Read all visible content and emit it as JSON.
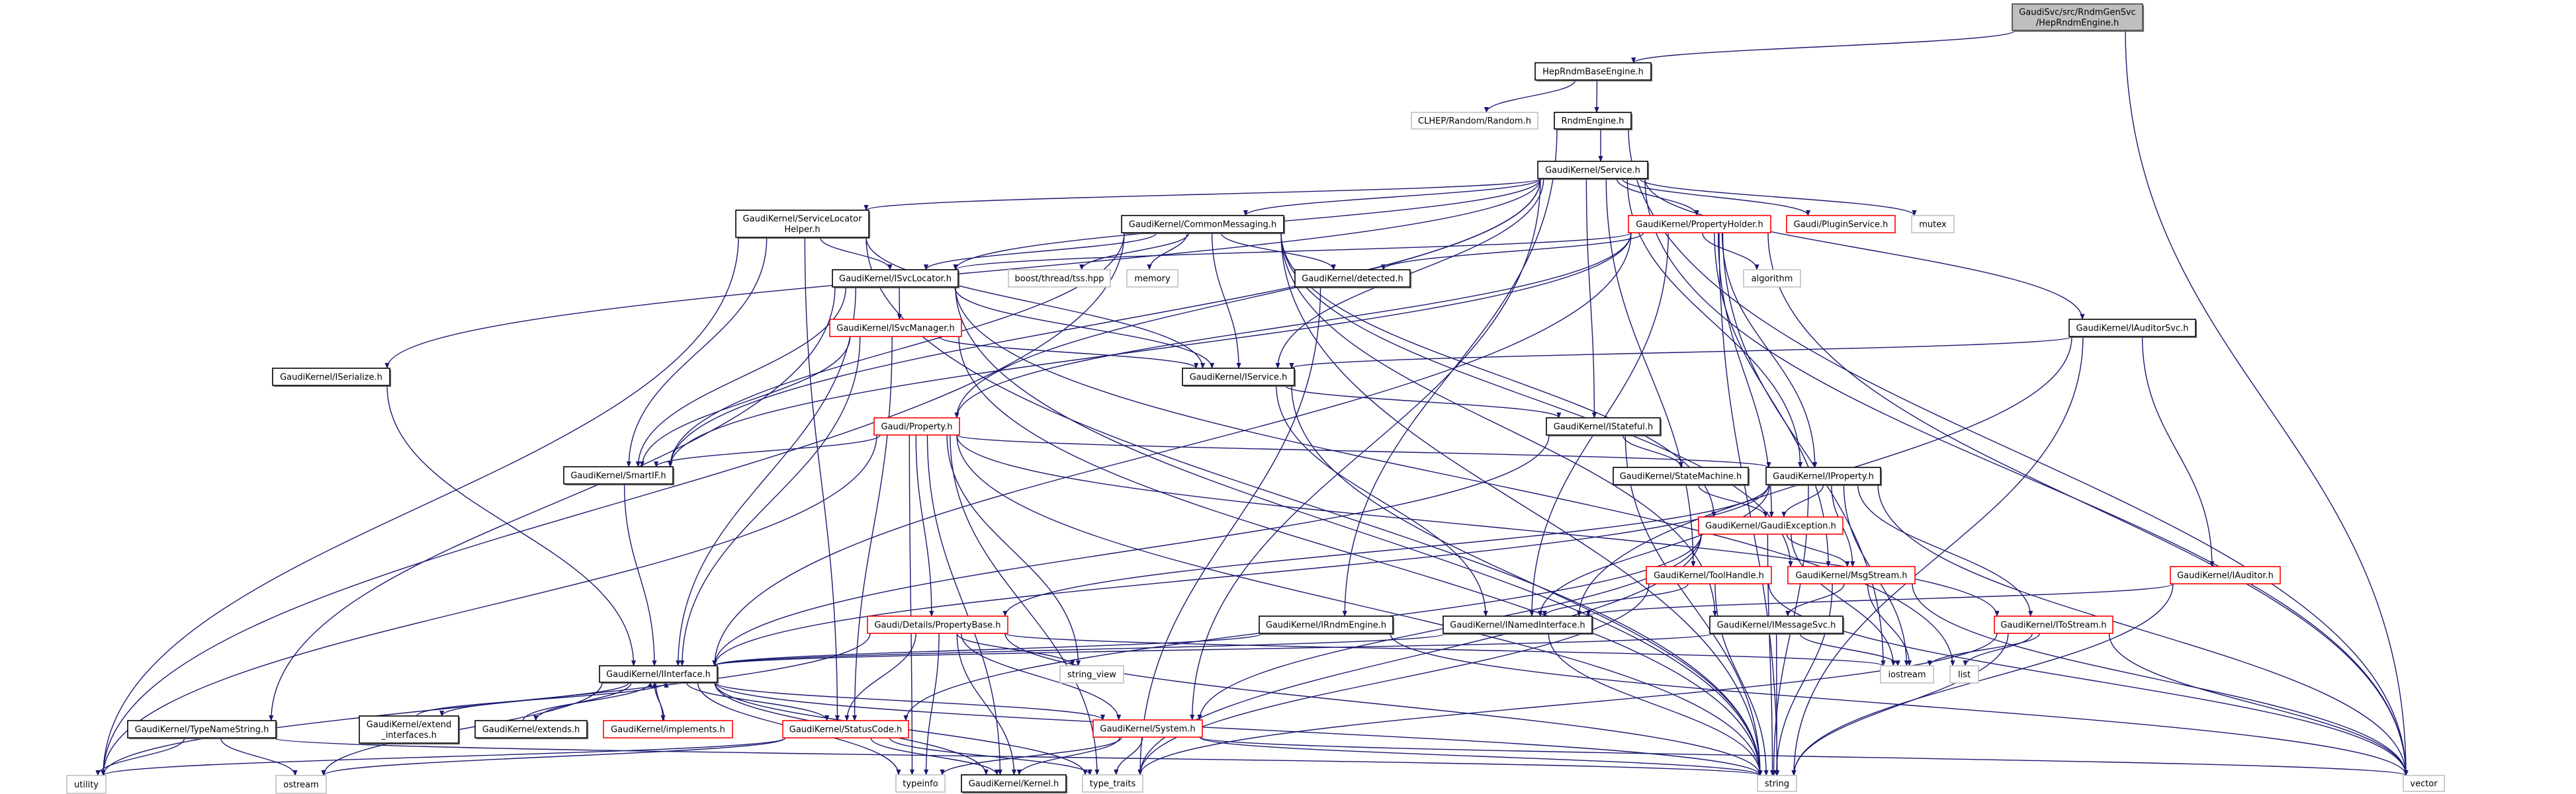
{
  "colors": {
    "edge": "#191970",
    "normal_border": "#000000",
    "root_fill": "#bfbfbf",
    "truncated_border": "#ff0000",
    "external_border": "#bfbfbf"
  },
  "nodes": {
    "root": {
      "lines": [
        "GaudiSvc/src/RndmGenSvc",
        "/HepRndmEngine.h"
      ],
      "kind": "root"
    },
    "hepbase": {
      "lines": [
        "HepRndmBaseEngine.h"
      ],
      "kind": "normal"
    },
    "clhep": {
      "lines": [
        "CLHEP/Random/Random.h"
      ],
      "kind": "external"
    },
    "rndmengine": {
      "lines": [
        "RndmEngine.h"
      ],
      "kind": "normal"
    },
    "service": {
      "lines": [
        "GaudiKernel/Service.h"
      ],
      "kind": "normal"
    },
    "slhelper": {
      "lines": [
        "GaudiKernel/ServiceLocator",
        "Helper.h"
      ],
      "kind": "normal"
    },
    "commonmsg": {
      "lines": [
        "GaudiKernel/CommonMessaging.h"
      ],
      "kind": "normal"
    },
    "propholder": {
      "lines": [
        "GaudiKernel/PropertyHolder.h"
      ],
      "kind": "truncated"
    },
    "pluginsvc": {
      "lines": [
        "Gaudi/PluginService.h"
      ],
      "kind": "truncated"
    },
    "mutex": {
      "lines": [
        "mutex"
      ],
      "kind": "external"
    },
    "isvclocator": {
      "lines": [
        "GaudiKernel/ISvcLocator.h"
      ],
      "kind": "normal"
    },
    "boosttss": {
      "lines": [
        "boost/thread/tss.hpp"
      ],
      "kind": "external"
    },
    "memory": {
      "lines": [
        "memory"
      ],
      "kind": "external"
    },
    "detected": {
      "lines": [
        "GaudiKernel/detected.h"
      ],
      "kind": "normal"
    },
    "algorithm": {
      "lines": [
        "algorithm"
      ],
      "kind": "external"
    },
    "iserialize": {
      "lines": [
        "GaudiKernel/ISerialize.h"
      ],
      "kind": "normal"
    },
    "isvcmanager": {
      "lines": [
        "GaudiKernel/ISvcManager.h"
      ],
      "kind": "truncated"
    },
    "iauditorsvc": {
      "lines": [
        "GaudiKernel/IAuditorSvc.h"
      ],
      "kind": "normal"
    },
    "iservice": {
      "lines": [
        "GaudiKernel/IService.h"
      ],
      "kind": "normal"
    },
    "property": {
      "lines": [
        "Gaudi/Property.h"
      ],
      "kind": "truncated"
    },
    "istateful": {
      "lines": [
        "GaudiKernel/IStateful.h"
      ],
      "kind": "normal"
    },
    "smartif": {
      "lines": [
        "GaudiKernel/SmartIF.h"
      ],
      "kind": "normal"
    },
    "statemachine": {
      "lines": [
        "GaudiKernel/StateMachine.h"
      ],
      "kind": "normal"
    },
    "iproperty": {
      "lines": [
        "GaudiKernel/IProperty.h"
      ],
      "kind": "normal"
    },
    "gaudiexception": {
      "lines": [
        "GaudiKernel/GaudiException.h"
      ],
      "kind": "truncated"
    },
    "toolhandle": {
      "lines": [
        "GaudiKernel/ToolHandle.h"
      ],
      "kind": "truncated"
    },
    "msgstream": {
      "lines": [
        "GaudiKernel/MsgStream.h"
      ],
      "kind": "truncated"
    },
    "iauditor": {
      "lines": [
        "GaudiKernel/IAuditor.h"
      ],
      "kind": "truncated"
    },
    "propertybase": {
      "lines": [
        "Gaudi/Details/PropertyBase.h"
      ],
      "kind": "truncated"
    },
    "irndmengine": {
      "lines": [
        "GaudiKernel/IRndmEngine.h"
      ],
      "kind": "normal"
    },
    "inamedinterface": {
      "lines": [
        "GaudiKernel/INamedInterface.h"
      ],
      "kind": "normal"
    },
    "imessagesvc": {
      "lines": [
        "GaudiKernel/IMessageSvc.h"
      ],
      "kind": "normal"
    },
    "itostream": {
      "lines": [
        "GaudiKernel/IToStream.h"
      ],
      "kind": "truncated"
    },
    "iostream": {
      "lines": [
        "iostream"
      ],
      "kind": "external"
    },
    "list": {
      "lines": [
        "list"
      ],
      "kind": "external"
    },
    "string_view": {
      "lines": [
        "string_view"
      ],
      "kind": "external"
    },
    "iinterface": {
      "lines": [
        "GaudiKernel/IInterface.h"
      ],
      "kind": "normal"
    },
    "typenamestring": {
      "lines": [
        "GaudiKernel/TypeNameString.h"
      ],
      "kind": "normal"
    },
    "extend_interfaces": {
      "lines": [
        "GaudiKernel/extend",
        "_interfaces.h"
      ],
      "kind": "normal"
    },
    "extends": {
      "lines": [
        "GaudiKernel/extends.h"
      ],
      "kind": "normal"
    },
    "implements": {
      "lines": [
        "GaudiKernel/implements.h"
      ],
      "kind": "truncated"
    },
    "statuscode": {
      "lines": [
        "GaudiKernel/StatusCode.h"
      ],
      "kind": "truncated"
    },
    "system": {
      "lines": [
        "GaudiKernel/System.h"
      ],
      "kind": "truncated"
    },
    "utility": {
      "lines": [
        "utility"
      ],
      "kind": "external"
    },
    "ostream": {
      "lines": [
        "ostream"
      ],
      "kind": "external"
    },
    "typeinfo": {
      "lines": [
        "typeinfo"
      ],
      "kind": "external"
    },
    "kernel": {
      "lines": [
        "GaudiKernel/Kernel.h"
      ],
      "kind": "normal"
    },
    "type_traits": {
      "lines": [
        "type_traits"
      ],
      "kind": "external"
    },
    "string": {
      "lines": [
        "string"
      ],
      "kind": "external"
    },
    "vector": {
      "lines": [
        "vector"
      ],
      "kind": "external"
    }
  },
  "edges": [
    [
      "root",
      "hepbase"
    ],
    [
      "root",
      "vector"
    ],
    [
      "hepbase",
      "clhep"
    ],
    [
      "hepbase",
      "rndmengine"
    ],
    [
      "rndmengine",
      "service"
    ],
    [
      "rndmengine",
      "irndmengine"
    ],
    [
      "rndmengine",
      "vector"
    ],
    [
      "service",
      "slhelper"
    ],
    [
      "service",
      "commonmsg"
    ],
    [
      "service",
      "propholder"
    ],
    [
      "service",
      "pluginsvc"
    ],
    [
      "service",
      "mutex"
    ],
    [
      "service",
      "isvclocator"
    ],
    [
      "service",
      "iservice"
    ],
    [
      "service",
      "property"
    ],
    [
      "service",
      "istateful"
    ],
    [
      "service",
      "smartif"
    ],
    [
      "service",
      "iproperty"
    ],
    [
      "service",
      "iauditorsvc"
    ],
    [
      "service",
      "iserialize"
    ],
    [
      "service",
      "vector"
    ],
    [
      "service",
      "toolhandle"
    ],
    [
      "service",
      "system"
    ],
    [
      "slhelper",
      "isvclocator"
    ],
    [
      "slhelper",
      "iservice"
    ],
    [
      "slhelper",
      "smartif"
    ],
    [
      "slhelper",
      "statuscode"
    ],
    [
      "slhelper",
      "string"
    ],
    [
      "slhelper",
      "utility"
    ],
    [
      "commonmsg",
      "boosttss"
    ],
    [
      "commonmsg",
      "memory"
    ],
    [
      "commonmsg",
      "detected"
    ],
    [
      "commonmsg",
      "isvclocator"
    ],
    [
      "commonmsg",
      "iservice"
    ],
    [
      "commonmsg",
      "smartif"
    ],
    [
      "commonmsg",
      "msgstream"
    ],
    [
      "commonmsg",
      "imessagesvc"
    ],
    [
      "commonmsg",
      "gaudiexception"
    ],
    [
      "commonmsg",
      "utility"
    ],
    [
      "commonmsg",
      "string"
    ],
    [
      "propholder",
      "algorithm"
    ],
    [
      "propholder",
      "detected"
    ],
    [
      "propholder",
      "isvclocator"
    ],
    [
      "propholder",
      "iproperty"
    ],
    [
      "propholder",
      "gaudiexception"
    ],
    [
      "propholder",
      "msgstream"
    ],
    [
      "propholder",
      "inamedinterface"
    ],
    [
      "propholder",
      "property"
    ],
    [
      "propholder",
      "vector"
    ],
    [
      "propholder",
      "string"
    ],
    [
      "propholder",
      "iostream"
    ],
    [
      "propholder",
      "iinterface"
    ],
    [
      "propholder",
      "smartif"
    ],
    [
      "isvclocator",
      "isvcmanager"
    ],
    [
      "isvclocator",
      "iservice"
    ],
    [
      "isvclocator",
      "smartif"
    ],
    [
      "isvclocator",
      "iinterface"
    ],
    [
      "isvclocator",
      "typenamestring"
    ],
    [
      "isvclocator",
      "string"
    ],
    [
      "isvclocator",
      "list"
    ],
    [
      "isvcmanager",
      "iservice"
    ],
    [
      "isvcmanager",
      "smartif"
    ],
    [
      "isvcmanager",
      "iinterface"
    ],
    [
      "isvcmanager",
      "statuscode"
    ],
    [
      "isvcmanager",
      "string"
    ],
    [
      "iauditorsvc",
      "iservice"
    ],
    [
      "iauditorsvc",
      "iauditor"
    ],
    [
      "iauditorsvc",
      "inamedinterface"
    ],
    [
      "iauditorsvc",
      "string"
    ],
    [
      "iserialize",
      "iinterface"
    ],
    [
      "iservice",
      "istateful"
    ],
    [
      "iservice",
      "inamedinterface"
    ],
    [
      "iservice",
      "string"
    ],
    [
      "detected",
      "type_traits"
    ],
    [
      "property",
      "smartif"
    ],
    [
      "property",
      "iproperty"
    ],
    [
      "property",
      "propertybase"
    ],
    [
      "property",
      "itostream"
    ],
    [
      "property",
      "string_view"
    ],
    [
      "property",
      "utility"
    ],
    [
      "property",
      "typeinfo"
    ],
    [
      "property",
      "kernel"
    ],
    [
      "property",
      "string"
    ],
    [
      "property",
      "type_traits"
    ],
    [
      "istateful",
      "statemachine"
    ],
    [
      "istateful",
      "iinterface"
    ],
    [
      "istateful",
      "string"
    ],
    [
      "smartif",
      "iinterface"
    ],
    [
      "statemachine",
      "gaudiexception"
    ],
    [
      "iproperty",
      "gaudiexception"
    ],
    [
      "iproperty",
      "inamedinterface"
    ],
    [
      "iproperty",
      "iinterface"
    ],
    [
      "iproperty",
      "itostream"
    ],
    [
      "iproperty",
      "msgstream"
    ],
    [
      "iproperty",
      "iostream"
    ],
    [
      "iproperty",
      "string"
    ],
    [
      "iproperty",
      "vector"
    ],
    [
      "iproperty",
      "propertybase"
    ],
    [
      "gaudiexception",
      "msgstream"
    ],
    [
      "gaudiexception",
      "statuscode"
    ],
    [
      "gaudiexception",
      "system"
    ],
    [
      "gaudiexception",
      "string"
    ],
    [
      "gaudiexception",
      "iostream"
    ],
    [
      "gaudiexception",
      "type_traits"
    ],
    [
      "toolhandle",
      "inamedinterface"
    ],
    [
      "toolhandle",
      "type_traits"
    ],
    [
      "toolhandle",
      "string"
    ],
    [
      "toolhandle",
      "vector"
    ],
    [
      "msgstream",
      "imessagesvc"
    ],
    [
      "msgstream",
      "iostream"
    ],
    [
      "msgstream",
      "string"
    ],
    [
      "msgstream",
      "vector"
    ],
    [
      "iauditor",
      "inamedinterface"
    ],
    [
      "iauditor",
      "string"
    ],
    [
      "propertybase",
      "kernel"
    ],
    [
      "propertybase",
      "statuscode"
    ],
    [
      "propertybase",
      "string_view"
    ],
    [
      "propertybase",
      "string"
    ],
    [
      "propertybase",
      "typeinfo"
    ],
    [
      "propertybase",
      "utility"
    ],
    [
      "propertybase",
      "system"
    ],
    [
      "propertybase",
      "iostream"
    ],
    [
      "irndmengine",
      "iinterface"
    ],
    [
      "irndmengine",
      "vector"
    ],
    [
      "inamedinterface",
      "iinterface"
    ],
    [
      "inamedinterface",
      "string"
    ],
    [
      "imessagesvc",
      "iinterface"
    ],
    [
      "imessagesvc",
      "string"
    ],
    [
      "imessagesvc",
      "iostream"
    ],
    [
      "itostream",
      "iostream"
    ],
    [
      "itostream",
      "list"
    ],
    [
      "itostream",
      "string"
    ],
    [
      "itostream",
      "vector"
    ],
    [
      "itostream",
      "type_traits"
    ],
    [
      "iinterface",
      "extend_interfaces"
    ],
    [
      "iinterface",
      "extends"
    ],
    [
      "iinterface",
      "implements"
    ],
    [
      "iinterface",
      "statuscode"
    ],
    [
      "iinterface",
      "system"
    ],
    [
      "iinterface",
      "kernel"
    ],
    [
      "iinterface",
      "ostream"
    ],
    [
      "iinterface",
      "type_traits"
    ],
    [
      "iinterface",
      "typeinfo"
    ],
    [
      "iinterface",
      "string"
    ],
    [
      "extend_interfaces",
      "iinterface"
    ],
    [
      "extends",
      "iinterface"
    ],
    [
      "implements",
      "iinterface"
    ],
    [
      "typenamestring",
      "utility"
    ],
    [
      "typenamestring",
      "ostream"
    ],
    [
      "typenamestring",
      "string"
    ],
    [
      "statuscode",
      "utility"
    ],
    [
      "statuscode",
      "ostream"
    ],
    [
      "statuscode",
      "kernel"
    ],
    [
      "statuscode",
      "type_traits"
    ],
    [
      "system",
      "typeinfo"
    ],
    [
      "system",
      "kernel"
    ],
    [
      "system",
      "string"
    ],
    [
      "system",
      "type_traits"
    ],
    [
      "system",
      "vector"
    ]
  ]
}
